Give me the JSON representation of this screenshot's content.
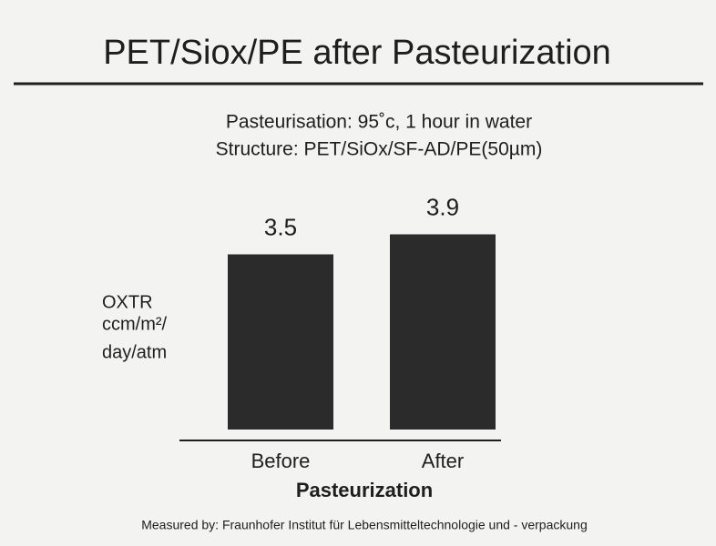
{
  "chart_data": {
    "type": "bar",
    "title": "PET/Siox/PE after Pasteurization",
    "subtitle": [
      "Pasteurisation: 95˚c, 1 hour in water",
      "Structure: PET/SiOx/SF-AD/PE(50µm)"
    ],
    "ylabel": [
      "OXTR",
      "ccm/m²/",
      "day/atm"
    ],
    "xlabel": "Pasteurization",
    "categories": [
      "Before",
      "After"
    ],
    "values": [
      3.5,
      3.9
    ],
    "color": "#2b2b2b",
    "footnote": "Measured by: Fraunhofer Institut für Lebensmitteltechnologie und - verpackung"
  }
}
